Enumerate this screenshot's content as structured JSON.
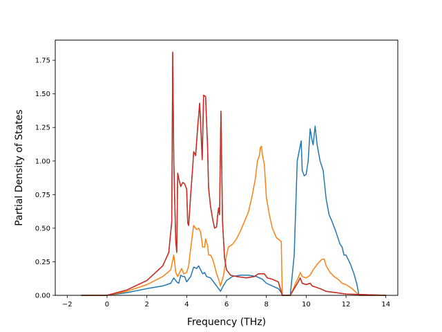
{
  "chart_data": {
    "type": "line",
    "title": "",
    "xlabel": "Frequency (THz)",
    "ylabel": "Partial Density of States",
    "xlim": [
      -2.6,
      14.6
    ],
    "ylim": [
      0,
      1.9
    ],
    "x_ticks": [
      -2,
      0,
      2,
      4,
      6,
      8,
      10,
      12,
      14
    ],
    "x_tick_labels": [
      "−2",
      "0",
      "2",
      "4",
      "6",
      "8",
      "10",
      "12",
      "14"
    ],
    "y_ticks": [
      0,
      0.25,
      0.5,
      0.75,
      1.0,
      1.25,
      1.5,
      1.75
    ],
    "y_tick_labels": [
      "0.00",
      "0.25",
      "0.50",
      "0.75",
      "1.00",
      "1.25",
      "1.50",
      "1.75"
    ],
    "grid": false,
    "legend": "none",
    "series": [
      {
        "color": "#1f77b4",
        "points": [
          [
            -1.3,
            0
          ],
          [
            0,
            0
          ],
          [
            1,
            0.02
          ],
          [
            2,
            0.05
          ],
          [
            2.8,
            0.07
          ],
          [
            3.2,
            0.09
          ],
          [
            3.35,
            0.13
          ],
          [
            3.5,
            0.1
          ],
          [
            3.6,
            0.09
          ],
          [
            3.7,
            0.15
          ],
          [
            3.8,
            0.14
          ],
          [
            3.9,
            0.14
          ],
          [
            4.0,
            0.1
          ],
          [
            4.1,
            0.12
          ],
          [
            4.2,
            0.14
          ],
          [
            4.35,
            0.21
          ],
          [
            4.5,
            0.2
          ],
          [
            4.6,
            0.22
          ],
          [
            4.7,
            0.19
          ],
          [
            4.8,
            0.16
          ],
          [
            4.9,
            0.17
          ],
          [
            5.0,
            0.14
          ],
          [
            5.2,
            0.13
          ],
          [
            5.4,
            0.09
          ],
          [
            5.6,
            0.05
          ],
          [
            5.7,
            0.03
          ],
          [
            5.8,
            0.06
          ],
          [
            6.0,
            0.11
          ],
          [
            6.3,
            0.14
          ],
          [
            6.7,
            0.15
          ],
          [
            7.1,
            0.15
          ],
          [
            7.5,
            0.14
          ],
          [
            7.8,
            0.12
          ],
          [
            8.0,
            0.09
          ],
          [
            8.3,
            0.07
          ],
          [
            8.6,
            0.05
          ],
          [
            8.75,
            0.02
          ],
          [
            8.8,
            0
          ],
          [
            9.2,
            0
          ],
          [
            9.4,
            0.3
          ],
          [
            9.55,
            1.0
          ],
          [
            9.75,
            1.15
          ],
          [
            9.8,
            0.93
          ],
          [
            9.9,
            0.89
          ],
          [
            10.0,
            0.9
          ],
          [
            10.1,
            1.0
          ],
          [
            10.2,
            1.24
          ],
          [
            10.3,
            1.15
          ],
          [
            10.35,
            1.12
          ],
          [
            10.45,
            1.26
          ],
          [
            10.55,
            1.12
          ],
          [
            10.7,
            1.0
          ],
          [
            10.85,
            0.93
          ],
          [
            11.0,
            0.72
          ],
          [
            11.15,
            0.6
          ],
          [
            11.3,
            0.55
          ],
          [
            11.5,
            0.47
          ],
          [
            11.7,
            0.38
          ],
          [
            11.8,
            0.36
          ],
          [
            11.9,
            0.3
          ],
          [
            12.0,
            0.3
          ],
          [
            12.2,
            0.24
          ],
          [
            12.4,
            0.16
          ],
          [
            12.55,
            0.08
          ],
          [
            12.65,
            0.0
          ],
          [
            14,
            0
          ]
        ]
      },
      {
        "color": "#ff7f0e",
        "points": [
          [
            -1.3,
            0
          ],
          [
            0,
            0
          ],
          [
            1,
            0.03
          ],
          [
            2,
            0.08
          ],
          [
            2.8,
            0.14
          ],
          [
            3.2,
            0.19
          ],
          [
            3.35,
            0.3
          ],
          [
            3.45,
            0.17
          ],
          [
            3.55,
            0.14
          ],
          [
            3.65,
            0.17
          ],
          [
            3.75,
            0.2
          ],
          [
            3.85,
            0.16
          ],
          [
            4.0,
            0.17
          ],
          [
            4.1,
            0.22
          ],
          [
            4.2,
            0.35
          ],
          [
            4.35,
            0.52
          ],
          [
            4.5,
            0.49
          ],
          [
            4.6,
            0.5
          ],
          [
            4.7,
            0.47
          ],
          [
            4.8,
            0.36
          ],
          [
            4.9,
            0.36
          ],
          [
            4.95,
            0.42
          ],
          [
            5.05,
            0.37
          ],
          [
            5.1,
            0.3
          ],
          [
            5.2,
            0.3
          ],
          [
            5.3,
            0.27
          ],
          [
            5.4,
            0.22
          ],
          [
            5.5,
            0.16
          ],
          [
            5.6,
            0.12
          ],
          [
            5.7,
            0.07
          ],
          [
            5.85,
            0.15
          ],
          [
            6.0,
            0.3
          ],
          [
            6.1,
            0.36
          ],
          [
            6.2,
            0.37
          ],
          [
            6.3,
            0.38
          ],
          [
            6.5,
            0.42
          ],
          [
            6.7,
            0.48
          ],
          [
            6.9,
            0.55
          ],
          [
            7.1,
            0.62
          ],
          [
            7.3,
            0.75
          ],
          [
            7.45,
            0.87
          ],
          [
            7.55,
            1.0
          ],
          [
            7.65,
            1.04
          ],
          [
            7.7,
            1.1
          ],
          [
            7.75,
            1.11
          ],
          [
            7.8,
            1.05
          ],
          [
            7.9,
            0.97
          ],
          [
            8.0,
            0.73
          ],
          [
            8.15,
            0.6
          ],
          [
            8.3,
            0.5
          ],
          [
            8.5,
            0.43
          ],
          [
            8.75,
            0.4
          ],
          [
            8.8,
            0
          ],
          [
            9.2,
            0
          ],
          [
            9.3,
            0.03
          ],
          [
            9.5,
            0.1
          ],
          [
            9.6,
            0.13
          ],
          [
            9.7,
            0.17
          ],
          [
            9.8,
            0.14
          ],
          [
            10.0,
            0.13
          ],
          [
            10.2,
            0.15
          ],
          [
            10.35,
            0.19
          ],
          [
            10.6,
            0.24
          ],
          [
            10.8,
            0.27
          ],
          [
            10.9,
            0.27
          ],
          [
            11.0,
            0.22
          ],
          [
            11.2,
            0.17
          ],
          [
            11.4,
            0.14
          ],
          [
            11.6,
            0.12
          ],
          [
            11.8,
            0.09
          ],
          [
            12.0,
            0.08
          ],
          [
            12.3,
            0.05
          ],
          [
            12.6,
            0.01
          ],
          [
            12.65,
            0
          ],
          [
            14,
            0
          ]
        ]
      },
      {
        "color": "#2ca02c",
        "points": [
          [
            -1.3,
            0
          ],
          [
            0,
            0
          ],
          [
            1,
            0.04
          ],
          [
            2,
            0.11
          ],
          [
            2.8,
            0.22
          ],
          [
            3.1,
            0.32
          ],
          [
            3.25,
            0.55
          ],
          [
            3.3,
            1.81
          ],
          [
            3.35,
            1.0
          ],
          [
            3.45,
            0.4
          ],
          [
            3.5,
            0.32
          ],
          [
            3.55,
            0.91
          ],
          [
            3.6,
            0.87
          ],
          [
            3.7,
            0.81
          ],
          [
            3.8,
            0.84
          ],
          [
            3.9,
            0.83
          ],
          [
            4.0,
            0.79
          ],
          [
            4.05,
            0.54
          ],
          [
            4.1,
            0.52
          ],
          [
            4.2,
            0.75
          ],
          [
            4.3,
            0.95
          ],
          [
            4.35,
            1.07
          ],
          [
            4.45,
            1.04
          ],
          [
            4.55,
            1.25
          ],
          [
            4.65,
            1.43
          ],
          [
            4.7,
            1.28
          ],
          [
            4.78,
            1.01
          ],
          [
            4.85,
            1.49
          ],
          [
            4.95,
            1.48
          ],
          [
            5.05,
            1.1
          ],
          [
            5.1,
            0.8
          ],
          [
            5.2,
            0.66
          ],
          [
            5.3,
            0.57
          ],
          [
            5.4,
            0.5
          ],
          [
            5.5,
            0.51
          ],
          [
            5.55,
            0.59
          ],
          [
            5.6,
            0.65
          ],
          [
            5.65,
            0.6
          ],
          [
            5.72,
            1.37
          ],
          [
            5.8,
            0.55
          ],
          [
            5.9,
            0.28
          ],
          [
            6.0,
            0.19
          ],
          [
            6.2,
            0.15
          ],
          [
            6.5,
            0.14
          ],
          [
            7.0,
            0.13
          ],
          [
            7.4,
            0.14
          ],
          [
            7.6,
            0.16
          ],
          [
            7.9,
            0.16
          ],
          [
            8.05,
            0.13
          ],
          [
            8.3,
            0.12
          ],
          [
            8.6,
            0.1
          ],
          [
            8.8,
            0
          ],
          [
            9.2,
            0
          ],
          [
            9.4,
            0.05
          ],
          [
            9.6,
            0.1
          ],
          [
            9.7,
            0.13
          ],
          [
            9.8,
            0.09
          ],
          [
            10.0,
            0.08
          ],
          [
            10.2,
            0.09
          ],
          [
            10.3,
            0.07
          ],
          [
            10.5,
            0.06
          ],
          [
            10.7,
            0.05
          ],
          [
            11.0,
            0.03
          ],
          [
            11.5,
            0.02
          ],
          [
            12.0,
            0.01
          ],
          [
            14,
            0
          ]
        ]
      },
      {
        "color": "#d62728",
        "points": [
          [
            -1.3,
            0
          ],
          [
            0,
            0
          ],
          [
            1,
            0.04
          ],
          [
            2,
            0.11
          ],
          [
            2.8,
            0.22
          ],
          [
            3.1,
            0.32
          ],
          [
            3.25,
            0.55
          ],
          [
            3.3,
            1.81
          ],
          [
            3.35,
            1.0
          ],
          [
            3.45,
            0.4
          ],
          [
            3.5,
            0.32
          ],
          [
            3.55,
            0.91
          ],
          [
            3.6,
            0.87
          ],
          [
            3.7,
            0.81
          ],
          [
            3.8,
            0.84
          ],
          [
            3.9,
            0.83
          ],
          [
            4.0,
            0.79
          ],
          [
            4.05,
            0.54
          ],
          [
            4.1,
            0.52
          ],
          [
            4.2,
            0.75
          ],
          [
            4.3,
            0.95
          ],
          [
            4.35,
            1.07
          ],
          [
            4.45,
            1.04
          ],
          [
            4.55,
            1.25
          ],
          [
            4.65,
            1.43
          ],
          [
            4.7,
            1.28
          ],
          [
            4.78,
            1.01
          ],
          [
            4.85,
            1.49
          ],
          [
            4.95,
            1.48
          ],
          [
            5.05,
            1.1
          ],
          [
            5.1,
            0.8
          ],
          [
            5.2,
            0.66
          ],
          [
            5.3,
            0.57
          ],
          [
            5.4,
            0.5
          ],
          [
            5.5,
            0.51
          ],
          [
            5.55,
            0.59
          ],
          [
            5.6,
            0.65
          ],
          [
            5.65,
            0.6
          ],
          [
            5.72,
            1.37
          ],
          [
            5.8,
            0.55
          ],
          [
            5.9,
            0.28
          ],
          [
            6.0,
            0.19
          ],
          [
            6.2,
            0.15
          ],
          [
            6.5,
            0.14
          ],
          [
            7.0,
            0.13
          ],
          [
            7.4,
            0.14
          ],
          [
            7.6,
            0.16
          ],
          [
            7.9,
            0.16
          ],
          [
            8.05,
            0.13
          ],
          [
            8.3,
            0.12
          ],
          [
            8.6,
            0.1
          ],
          [
            8.8,
            0
          ],
          [
            9.2,
            0
          ],
          [
            9.4,
            0.05
          ],
          [
            9.6,
            0.1
          ],
          [
            9.7,
            0.13
          ],
          [
            9.8,
            0.09
          ],
          [
            10.0,
            0.08
          ],
          [
            10.2,
            0.09
          ],
          [
            10.3,
            0.07
          ],
          [
            10.5,
            0.06
          ],
          [
            10.7,
            0.05
          ],
          [
            11.0,
            0.03
          ],
          [
            11.5,
            0.02
          ],
          [
            12.0,
            0.01
          ],
          [
            14,
            0
          ]
        ]
      }
    ]
  }
}
